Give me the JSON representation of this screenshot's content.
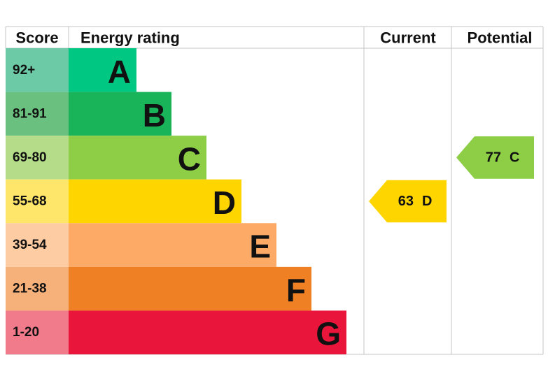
{
  "header": {
    "score": "Score",
    "energy_rating": "Energy rating",
    "current": "Current",
    "potential": "Potential"
  },
  "bands": [
    {
      "score": "92+",
      "letter": "A",
      "color": "#00c781",
      "score_color": "#6ccba6"
    },
    {
      "score": "81-91",
      "letter": "B",
      "color": "#19b459",
      "score_color": "#6ac17f"
    },
    {
      "score": "69-80",
      "letter": "C",
      "color": "#8dce46",
      "score_color": "#b5dd89"
    },
    {
      "score": "55-68",
      "letter": "D",
      "color": "#ffd500",
      "score_color": "#fee66a"
    },
    {
      "score": "39-54",
      "letter": "E",
      "color": "#fcaa65",
      "score_color": "#fdcca2"
    },
    {
      "score": "21-38",
      "letter": "F",
      "color": "#ef8023",
      "score_color": "#f6b07a"
    },
    {
      "score": "1-20",
      "letter": "G",
      "color": "#e9153b",
      "score_color": "#f17a8b"
    }
  ],
  "current": {
    "value": 63,
    "letter": "D",
    "color": "#ffd500"
  },
  "potential": {
    "value": 77,
    "letter": "C",
    "color": "#8dce46"
  }
}
